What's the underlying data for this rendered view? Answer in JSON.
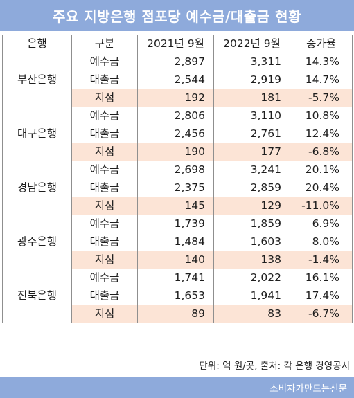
{
  "title": "주요 지방은행 점포당 예수금/대출금 현황",
  "headers": [
    "은행",
    "구분",
    "2021년 9월",
    "2022년 9월",
    "증가율"
  ],
  "banks": [
    {
      "name": "부산은행",
      "rows": [
        {
          "cat": "예수금",
          "y2021": "2,897",
          "y2022": "3,311",
          "rate": "14.3%"
        },
        {
          "cat": "대출금",
          "y2021": "2,544",
          "y2022": "2,919",
          "rate": "14.7%"
        },
        {
          "cat": "지점",
          "y2021": "192",
          "y2022": "181",
          "rate": "-5.7%"
        }
      ]
    },
    {
      "name": "대구은행",
      "rows": [
        {
          "cat": "예수금",
          "y2021": "2,806",
          "y2022": "3,110",
          "rate": "10.8%"
        },
        {
          "cat": "대출금",
          "y2021": "2,456",
          "y2022": "2,761",
          "rate": "12.4%"
        },
        {
          "cat": "지점",
          "y2021": "190",
          "y2022": "177",
          "rate": "-6.8%"
        }
      ]
    },
    {
      "name": "경남은행",
      "rows": [
        {
          "cat": "예수금",
          "y2021": "2,698",
          "y2022": "3,241",
          "rate": "20.1%"
        },
        {
          "cat": "대출금",
          "y2021": "2,375",
          "y2022": "2,859",
          "rate": "20.4%"
        },
        {
          "cat": "지점",
          "y2021": "145",
          "y2022": "129",
          "rate": "-11.0%"
        }
      ]
    },
    {
      "name": "광주은행",
      "rows": [
        {
          "cat": "예수금",
          "y2021": "1,739",
          "y2022": "1,859",
          "rate": "6.9%"
        },
        {
          "cat": "대출금",
          "y2021": "1,484",
          "y2022": "1,603",
          "rate": "8.0%"
        },
        {
          "cat": "지점",
          "y2021": "140",
          "y2022": "138",
          "rate": "-1.4%"
        }
      ]
    },
    {
      "name": "전북은행",
      "rows": [
        {
          "cat": "예수금",
          "y2021": "1,741",
          "y2022": "2,022",
          "rate": "16.1%"
        },
        {
          "cat": "대출금",
          "y2021": "1,653",
          "y2022": "1,941",
          "rate": "17.4%"
        },
        {
          "cat": "지점",
          "y2021": "89",
          "y2022": "83",
          "rate": "-6.7%"
        }
      ]
    }
  ],
  "source_note": "단위: 억 원/곳, 출처: 각 은행 경영공시",
  "footer": "소비자가만드는신문",
  "colors": {
    "header_bar": "#8eaadb",
    "branch_row": "#fce4d6"
  }
}
